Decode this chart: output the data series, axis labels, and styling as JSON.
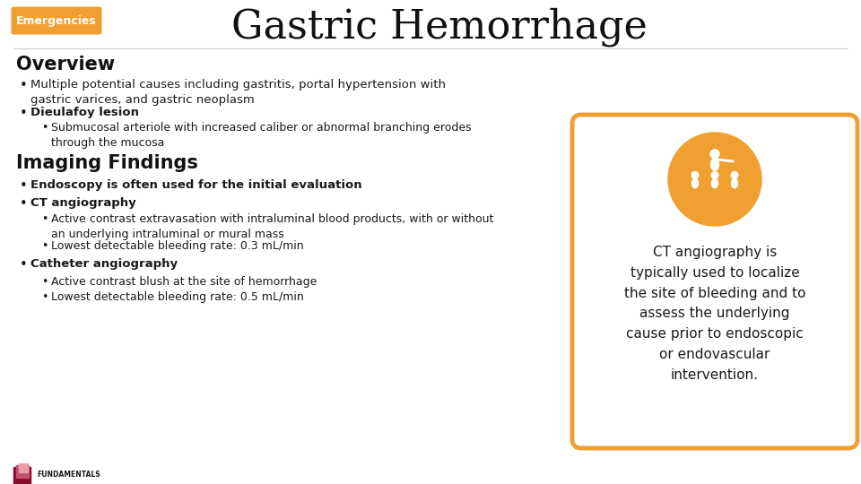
{
  "title": "Gastric Hemorrhage",
  "tag_text": "Emergencies",
  "tag_bg": "#F0A030",
  "tag_text_color": "#ffffff",
  "bg_color": "#ffffff",
  "section1_heading": "Overview",
  "bullet1_main": "Multiple potential causes including gastritis, portal hypertension with\ngastric varices, and gastric neoplasm",
  "bullet2_main": "Dieulafoy lesion",
  "bullet2_sub": "Submucosal arteriole with increased caliber or abnormal branching erodes\nthrough the mucosa",
  "section2_heading": "Imaging Findings",
  "bullet3_main": "Endoscopy is often used for the initial evaluation",
  "bullet4_main": "CT angiography",
  "bullet4_sub1": "Active contrast extravasation with intraluminal blood products, with or without\nan underlying intraluminal or mural mass",
  "bullet4_sub2": "Lowest detectable bleeding rate: 0.3 mL/min",
  "bullet5_main": "Catheter angiography",
  "bullet5_sub1": "Active contrast blush at the site of hemorrhage",
  "bullet5_sub2": "Lowest detectable bleeding rate: 0.5 mL/min",
  "box_text": "CT angiography is\ntypically used to localize\nthe site of bleeding and to\nassess the underlying\ncause prior to endoscopic\nor endovascular\nintervention.",
  "box_border_color": "#F0A030",
  "box_icon_color": "#F0A030",
  "text_color": "#1a1a1a",
  "heading_color": "#111111",
  "radio_color1": "#8B0A2A",
  "radio_color2": "#C45070",
  "radio_color3": "#E8A0A8",
  "rsna_color": "#C8780A",
  "sep_color": "#cccccc"
}
